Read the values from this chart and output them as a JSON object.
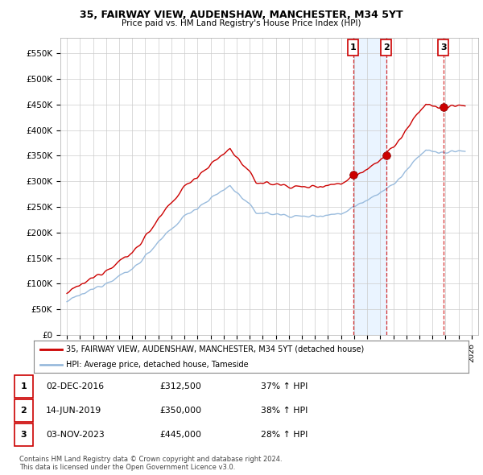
{
  "title": "35, FAIRWAY VIEW, AUDENSHAW, MANCHESTER, M34 5YT",
  "subtitle": "Price paid vs. HM Land Registry's House Price Index (HPI)",
  "ylabel_ticks": [
    "£0",
    "£50K",
    "£100K",
    "£150K",
    "£200K",
    "£250K",
    "£300K",
    "£350K",
    "£400K",
    "£450K",
    "£500K",
    "£550K"
  ],
  "ytick_values": [
    0,
    50000,
    100000,
    150000,
    200000,
    250000,
    300000,
    350000,
    400000,
    450000,
    500000,
    550000
  ],
  "ylim": [
    0,
    580000
  ],
  "xlim_start": 1994.5,
  "xlim_end": 2026.5,
  "hpi_color": "#99bbdd",
  "price_color": "#cc0000",
  "grid_color": "#cccccc",
  "background_color": "#ffffff",
  "sale_1_x": 2016.917,
  "sale_1_y": 312500,
  "sale_1_label": "1",
  "sale_2_x": 2019.45,
  "sale_2_y": 350000,
  "sale_2_label": "2",
  "sale_3_x": 2023.833,
  "sale_3_y": 445000,
  "sale_3_label": "3",
  "legend_line1": "35, FAIRWAY VIEW, AUDENSHAW, MANCHESTER, M34 5YT (detached house)",
  "legend_line2": "HPI: Average price, detached house, Tameside",
  "table_rows": [
    [
      "1",
      "02-DEC-2016",
      "£312,500",
      "37% ↑ HPI"
    ],
    [
      "2",
      "14-JUN-2019",
      "£350,000",
      "38% ↑ HPI"
    ],
    [
      "3",
      "03-NOV-2023",
      "£445,000",
      "28% ↑ HPI"
    ]
  ],
  "footer": "Contains HM Land Registry data © Crown copyright and database right 2024.\nThis data is licensed under the Open Government Licence v3.0.",
  "vline_color": "#cc0000",
  "shade_color": "#ddeeff"
}
